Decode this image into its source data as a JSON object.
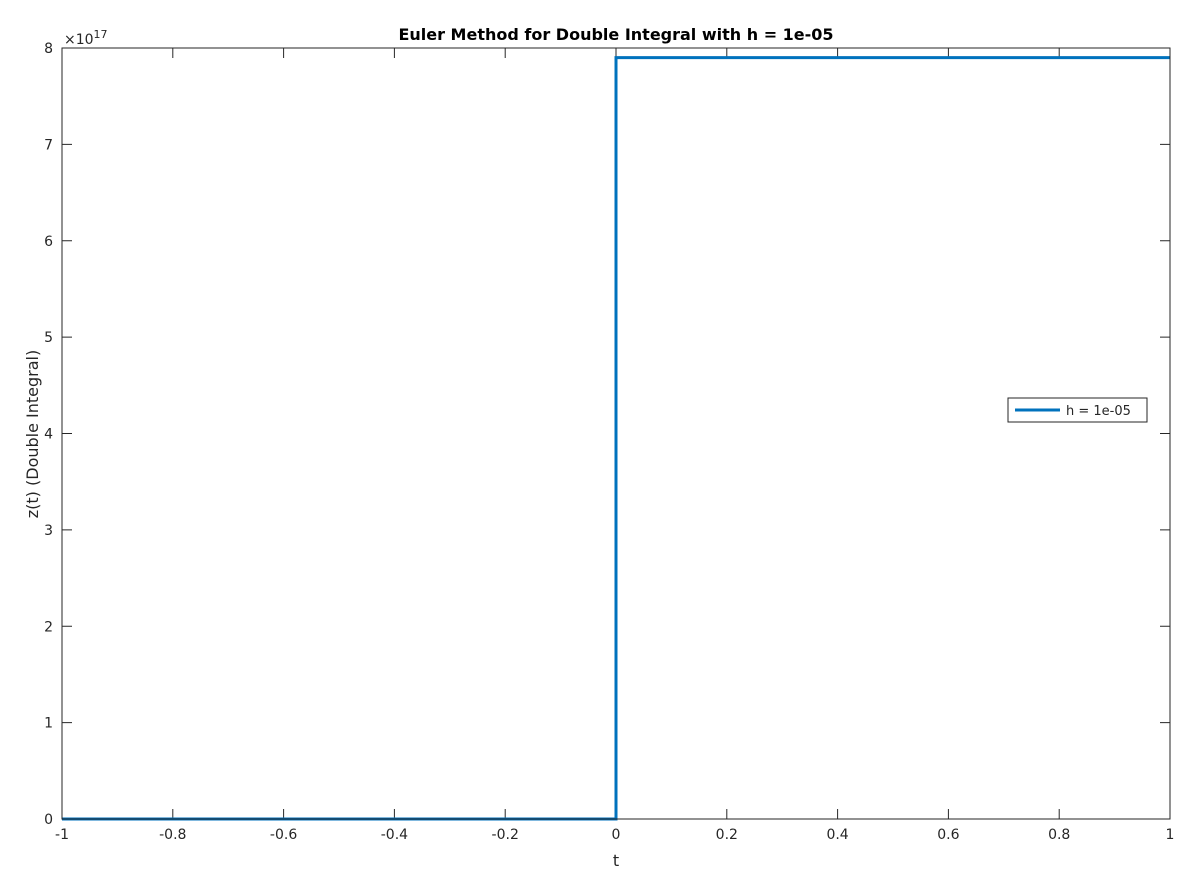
{
  "chart_data": {
    "type": "line",
    "title": "Euler Method for Double Integral with h = 1e-05",
    "xlabel": "t",
    "ylabel": "z(t) (Double Integral)",
    "xlim": [
      -1,
      1
    ],
    "ylim": [
      0,
      8
    ],
    "y_exponent_label": "×10",
    "y_exponent_power": "17",
    "x_ticks": [
      -1,
      -0.8,
      -0.6,
      -0.4,
      -0.2,
      0,
      0.2,
      0.4,
      0.6,
      0.8,
      1
    ],
    "x_tick_labels": [
      "-1",
      "-0.8",
      "-0.6",
      "-0.4",
      "-0.2",
      "0",
      "0.2",
      "0.4",
      "0.6",
      "0.8",
      "1"
    ],
    "y_ticks": [
      0,
      1,
      2,
      3,
      4,
      5,
      6,
      7,
      8
    ],
    "y_tick_labels": [
      "0",
      "1",
      "2",
      "3",
      "4",
      "5",
      "6",
      "7",
      "8"
    ],
    "grid": false,
    "box": true,
    "legend_position": "east",
    "series": [
      {
        "name": "h = 1e-05",
        "color": "#0072BD",
        "x": [
          -1,
          0,
          0,
          2e-05,
          1
        ],
        "y": [
          0,
          0,
          3,
          7.9,
          7.9
        ]
      }
    ]
  }
}
